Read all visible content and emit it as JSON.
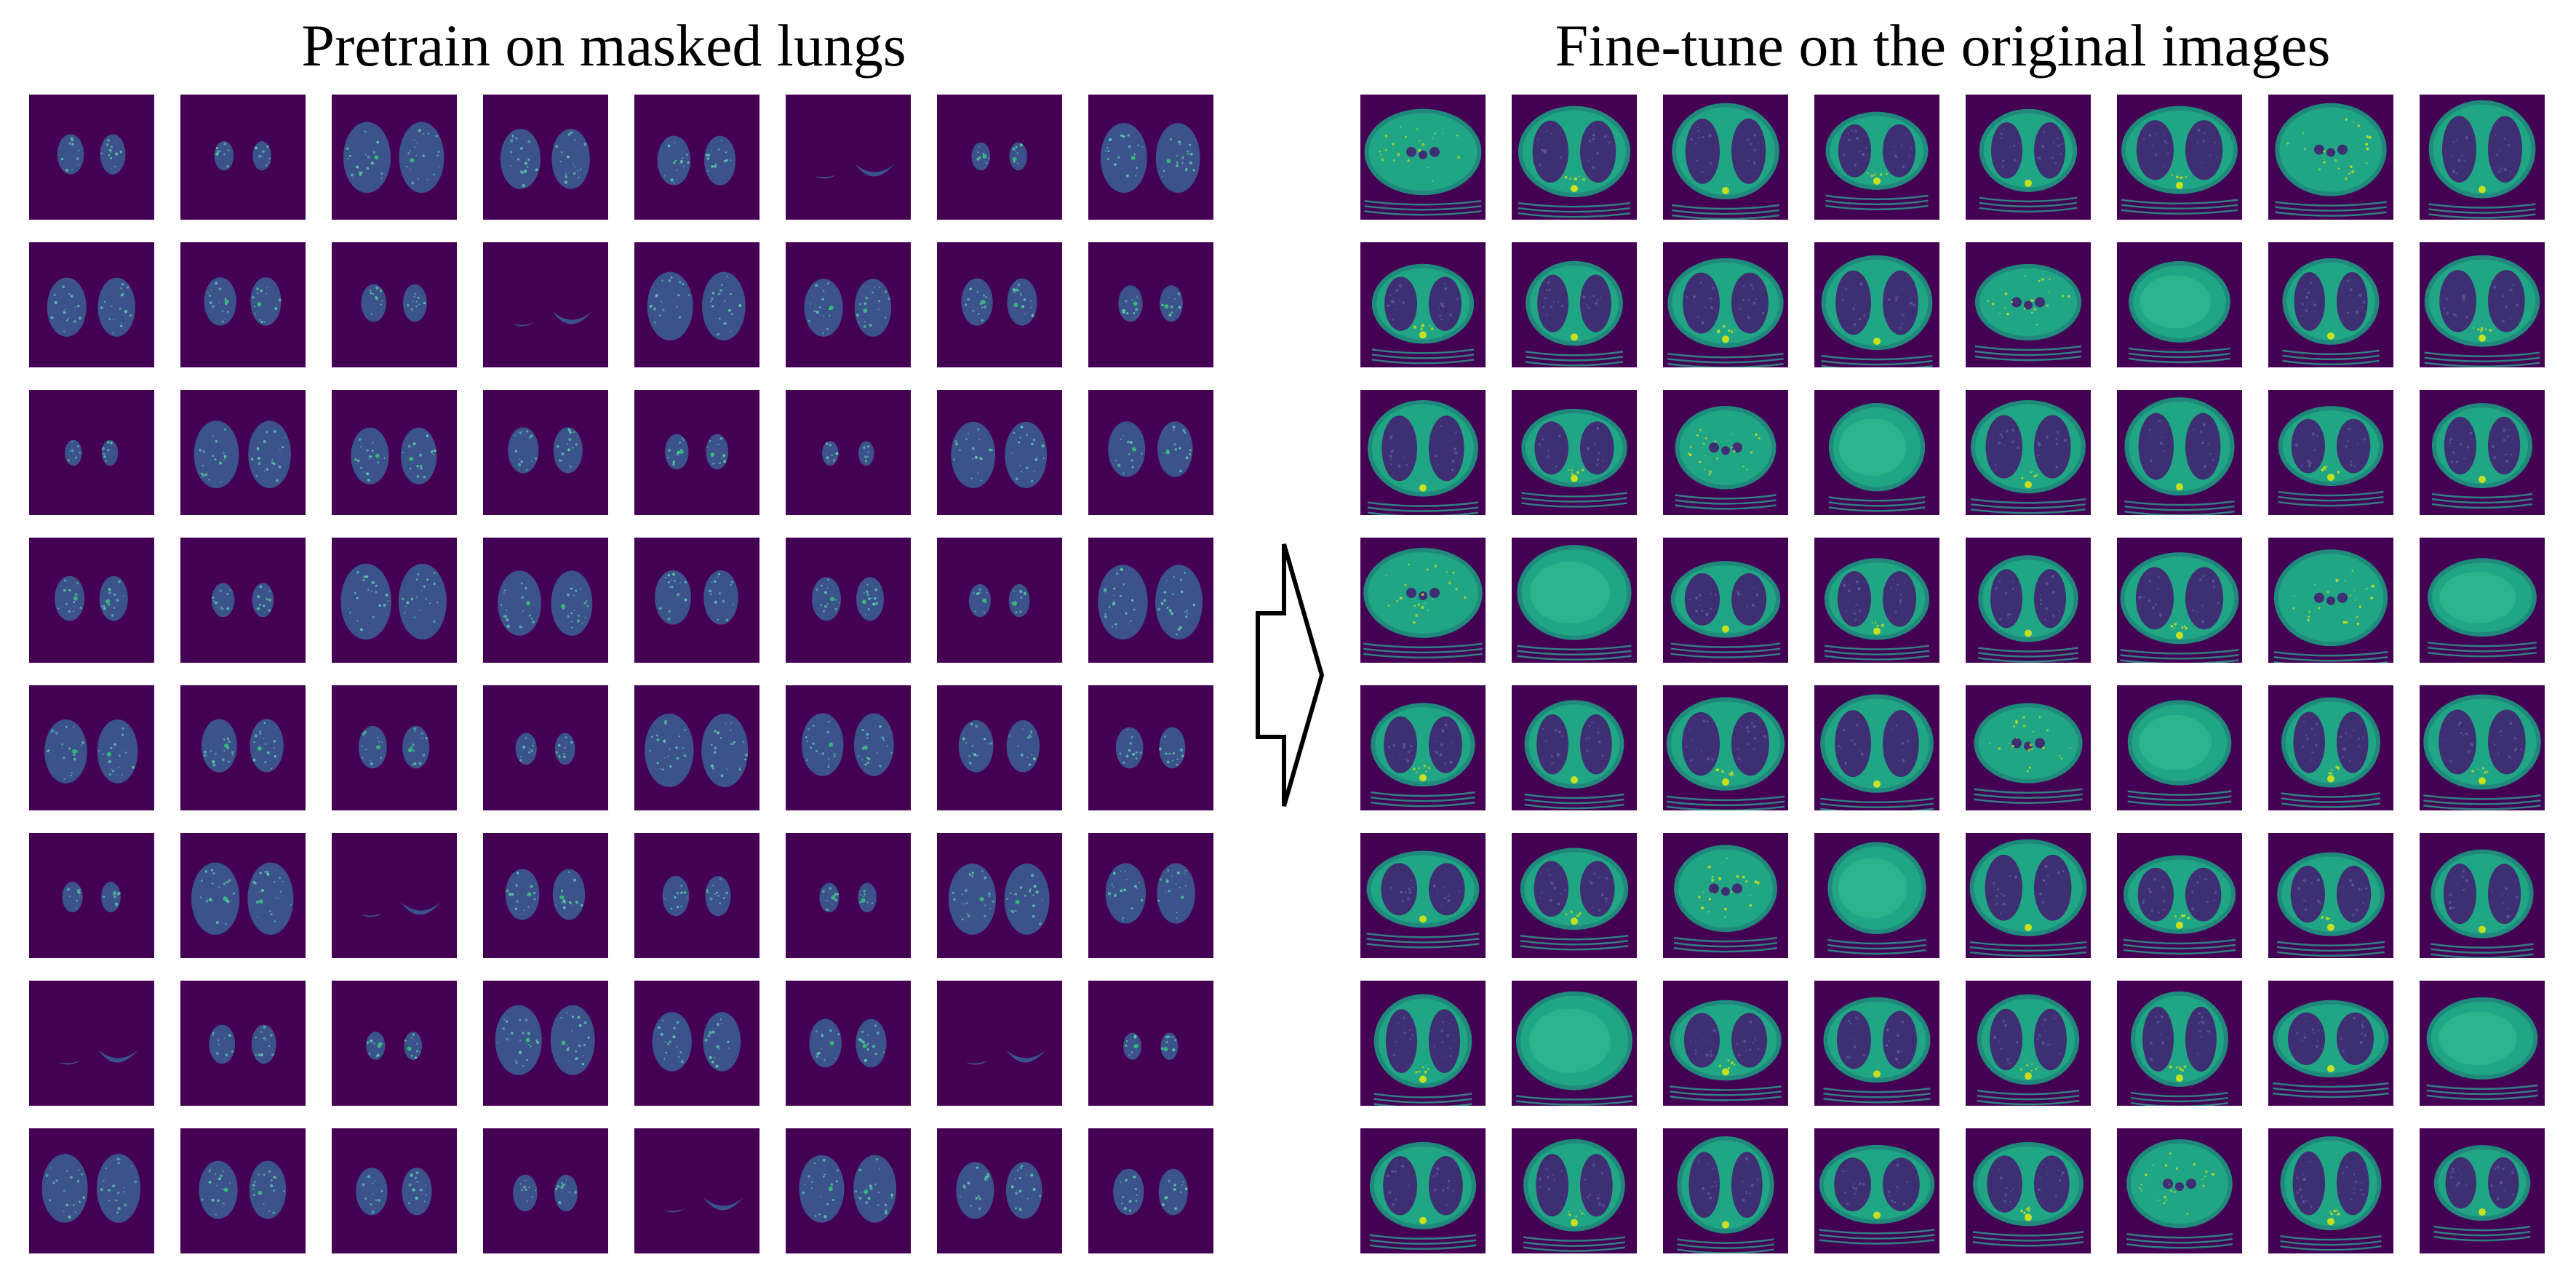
{
  "figure": {
    "left_panel": {
      "title": "Pretrain on masked lungs",
      "rows": 8,
      "cols": 8,
      "tile_kind": "masked-lung-ct-slice",
      "background_color": "#440154",
      "tissue_color": "#3b528b",
      "highlight_color": "#35b779"
    },
    "right_panel": {
      "title": "Fine-tune on the original images",
      "rows": 8,
      "cols": 8,
      "tile_kind": "original-ct-slice",
      "background_color": "#440154",
      "body_color": "#21a685",
      "lung_color": "#3e2f72",
      "bone_color": "#c8e020"
    },
    "arrow": {
      "direction": "right",
      "icon": "hollow-right-arrow-icon"
    }
  }
}
